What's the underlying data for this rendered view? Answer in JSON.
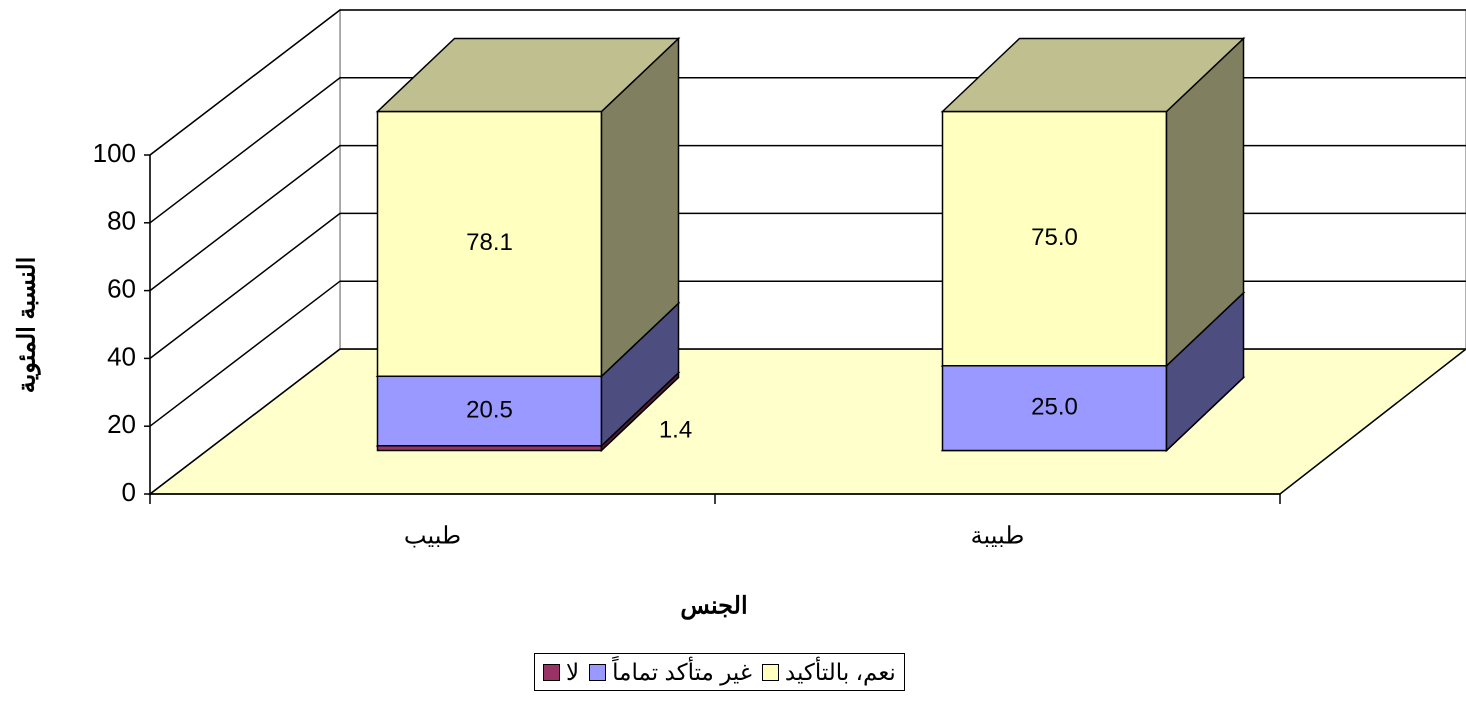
{
  "chart_data": {
    "type": "bar3d_stacked",
    "y_label": "النسبة المئوية",
    "x_label": "الجنس",
    "categories": [
      "طبيب",
      "طبيبة"
    ],
    "series": [
      {
        "name": "نعم، بالتأكيد",
        "color": "#ffffc0",
        "values": [
          78.1,
          75
        ],
        "value_labels": [
          "78.1",
          "75.0"
        ]
      },
      {
        "name": "غير متأكد تماماً",
        "color": "#9999ff",
        "values": [
          20.5,
          25
        ],
        "value_labels": [
          "20.5",
          "25.0"
        ]
      },
      {
        "name": "لا",
        "color": "#993366",
        "values": [
          1.4,
          0
        ],
        "value_labels": [
          "1.4",
          null
        ]
      }
    ],
    "ylim": [
      0,
      100
    ],
    "yticks": [
      0,
      20,
      40,
      60,
      80,
      100
    ],
    "grid": true,
    "legend": "bottom"
  }
}
